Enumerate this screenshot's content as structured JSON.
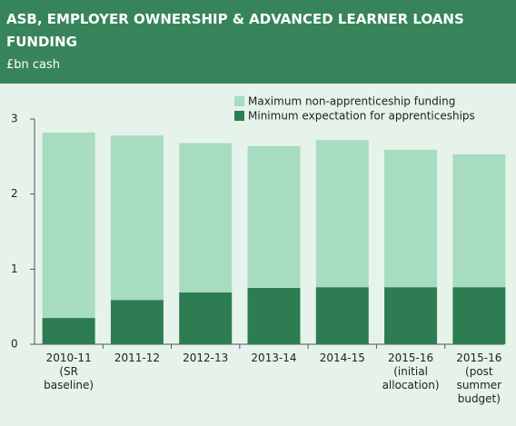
{
  "chart_data": {
    "type": "stacked_bar",
    "title": "ASB, EMPLOYER OWNERSHIP & ADVANCED LEARNER LOANS FUNDING",
    "subtitle": "£bn cash",
    "categories": [
      "2010-11\n(SR\nbaseline)",
      "2011-12",
      "2012-13",
      "2013-14",
      "2014-15",
      "2015-16\n(initial\nallocation)",
      "2015-16\n(post\nsummer\nbudget)"
    ],
    "series": [
      {
        "name": "Minimum expectation for apprenticeships",
        "color": "#2e7d52",
        "values": [
          0.35,
          0.59,
          0.69,
          0.75,
          0.76,
          0.76,
          0.76
        ]
      },
      {
        "name": "Maximum non-apprenticeship funding",
        "color": "#a8dcc0",
        "values": [
          2.47,
          2.19,
          1.99,
          1.89,
          1.96,
          1.83,
          1.77
        ]
      }
    ],
    "legend_order": [
      1,
      0
    ],
    "ylim": [
      0,
      3
    ],
    "yticks": [
      0,
      1,
      2,
      3
    ]
  }
}
